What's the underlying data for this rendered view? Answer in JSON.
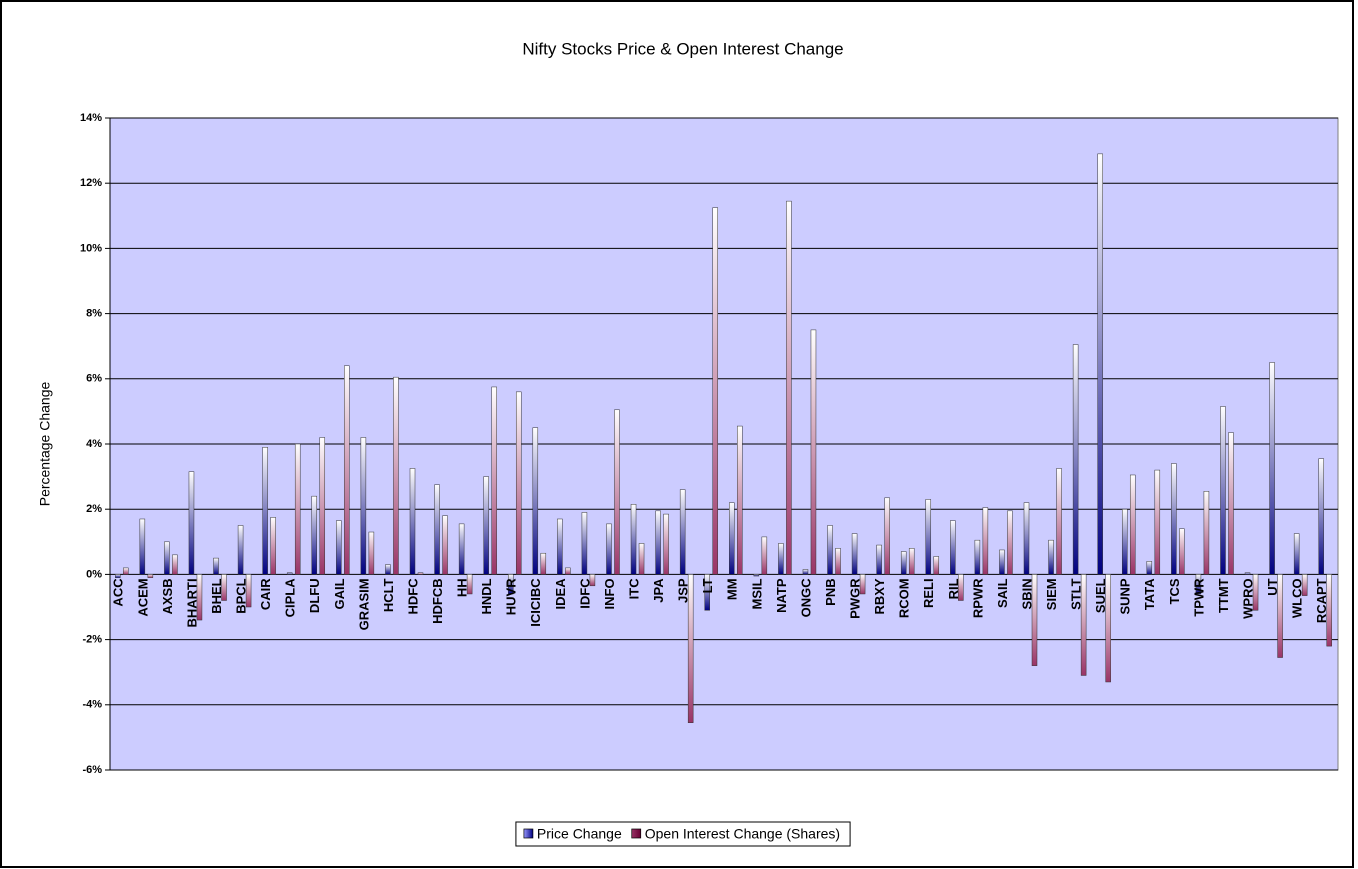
{
  "chart_data": {
    "type": "bar",
    "title": "Nifty Stocks Price & Open Interest Change",
    "y_label": "Percentage Change",
    "categories": [
      "ACC",
      "ACEM",
      "AXSB",
      "BHARTI",
      "BHEL",
      "BPCL",
      "CAIR",
      "CIPLA",
      "DLFU",
      "GAIL",
      "GRASIM",
      "HCLT",
      "HDFC",
      "HDFCB",
      "HH",
      "HNDL",
      "HUVR",
      "ICICIBC",
      "IDEA",
      "IDFC",
      "INFO",
      "ITC",
      "JPA",
      "JSP",
      "LT",
      "MM",
      "MSIL",
      "NATP",
      "ONGC",
      "PNB",
      "PWGR",
      "RBXY",
      "RCOM",
      "RELI",
      "RIL",
      "RPWR",
      "SAIL",
      "SBIN",
      "SIEM",
      "STLT",
      "SUEL",
      "SUNP",
      "TATA",
      "TCS",
      "TPWR",
      "TTMT",
      "WPRO",
      "UT",
      "WLCO",
      "RCAPT"
    ],
    "series": [
      {
        "name": "Price Change",
        "color": "#9999ff",
        "values": [
          -0.1,
          1.7,
          1.0,
          3.15,
          0.5,
          1.5,
          3.9,
          0.05,
          2.4,
          1.65,
          4.2,
          0.3,
          3.25,
          2.75,
          1.55,
          3.0,
          -0.6,
          4.5,
          1.7,
          1.9,
          1.55,
          2.15,
          1.95,
          2.6,
          -1.1,
          2.2,
          -0.05,
          0.95,
          0.15,
          1.5,
          1.25,
          0.9,
          0.7,
          2.3,
          1.65,
          1.05,
          0.75,
          2.2,
          1.05,
          7.05,
          12.9,
          2.0,
          0.4,
          3.4,
          -0.6,
          5.15,
          0.05,
          6.5,
          1.25,
          3.55
        ]
      },
      {
        "name": "Open Interest Change (Shares)",
        "color": "#993366",
        "values": [
          0.2,
          -0.1,
          0.6,
          -1.4,
          -0.8,
          -1.0,
          1.75,
          4.0,
          4.2,
          6.4,
          1.3,
          6.05,
          0.05,
          1.8,
          -0.6,
          5.75,
          5.6,
          0.65,
          0.2,
          -0.35,
          5.05,
          0.95,
          1.85,
          -4.55,
          11.25,
          4.55,
          1.15,
          11.45,
          7.5,
          0.8,
          -0.6,
          2.35,
          0.8,
          0.55,
          -0.8,
          2.05,
          1.95,
          -2.8,
          3.25,
          -3.1,
          -3.3,
          3.05,
          3.2,
          1.4,
          2.55,
          4.35,
          -1.1,
          -2.55,
          -0.65,
          -2.2
        ]
      }
    ],
    "ylim": [
      -6,
      14
    ],
    "yticks": [
      {
        "value": -6,
        "label": "-6%"
      },
      {
        "value": -4,
        "label": "-4%"
      },
      {
        "value": -2,
        "label": "-2%"
      },
      {
        "value": 0,
        "label": "0%"
      },
      {
        "value": 2,
        "label": "2%"
      },
      {
        "value": 4,
        "label": "4%"
      },
      {
        "value": 6,
        "label": "6%"
      },
      {
        "value": 8,
        "label": "8%"
      },
      {
        "value": 10,
        "label": "10%"
      },
      {
        "value": 12,
        "label": "12%"
      },
      {
        "value": 14,
        "label": "14%"
      }
    ],
    "grid": true,
    "plot_background": "#ccccff",
    "legend": "bottom"
  }
}
